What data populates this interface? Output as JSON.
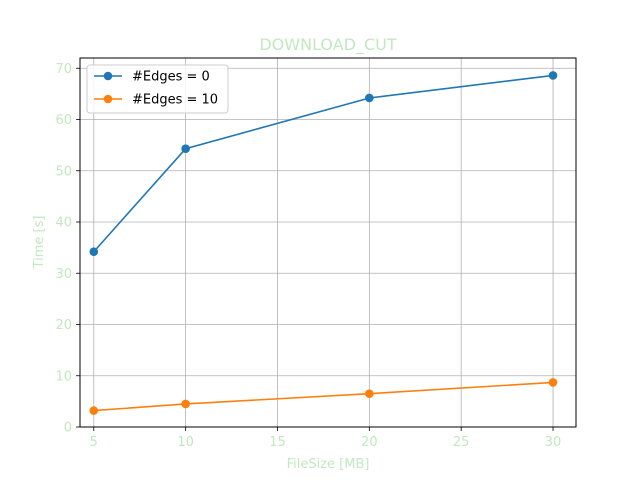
{
  "chart_data": {
    "type": "line",
    "title": "DOWNLOAD_CUT",
    "xlabel": "FileSize [MB]",
    "ylabel": "Time [s]",
    "x": [
      5,
      10,
      20,
      30
    ],
    "xlim": [
      4.25,
      31.25
    ],
    "ylim": [
      0,
      72
    ],
    "xticks": [
      5,
      10,
      15,
      20,
      25,
      30
    ],
    "yticks": [
      0,
      10,
      20,
      30,
      40,
      50,
      60,
      70
    ],
    "grid": true,
    "legend_position": "top-left",
    "series": [
      {
        "name": "#Edges = 0",
        "values": [
          34.2,
          54.3,
          64.2,
          68.6
        ],
        "color": "#1f77b4"
      },
      {
        "name": "#Edges = 10",
        "values": [
          3.2,
          4.5,
          6.5,
          8.7
        ],
        "color": "#ff7f0e"
      }
    ],
    "colors": {
      "label_color": "#c2e8c0",
      "grid_color": "#b0b0b0",
      "axis_color": "#000000"
    }
  }
}
